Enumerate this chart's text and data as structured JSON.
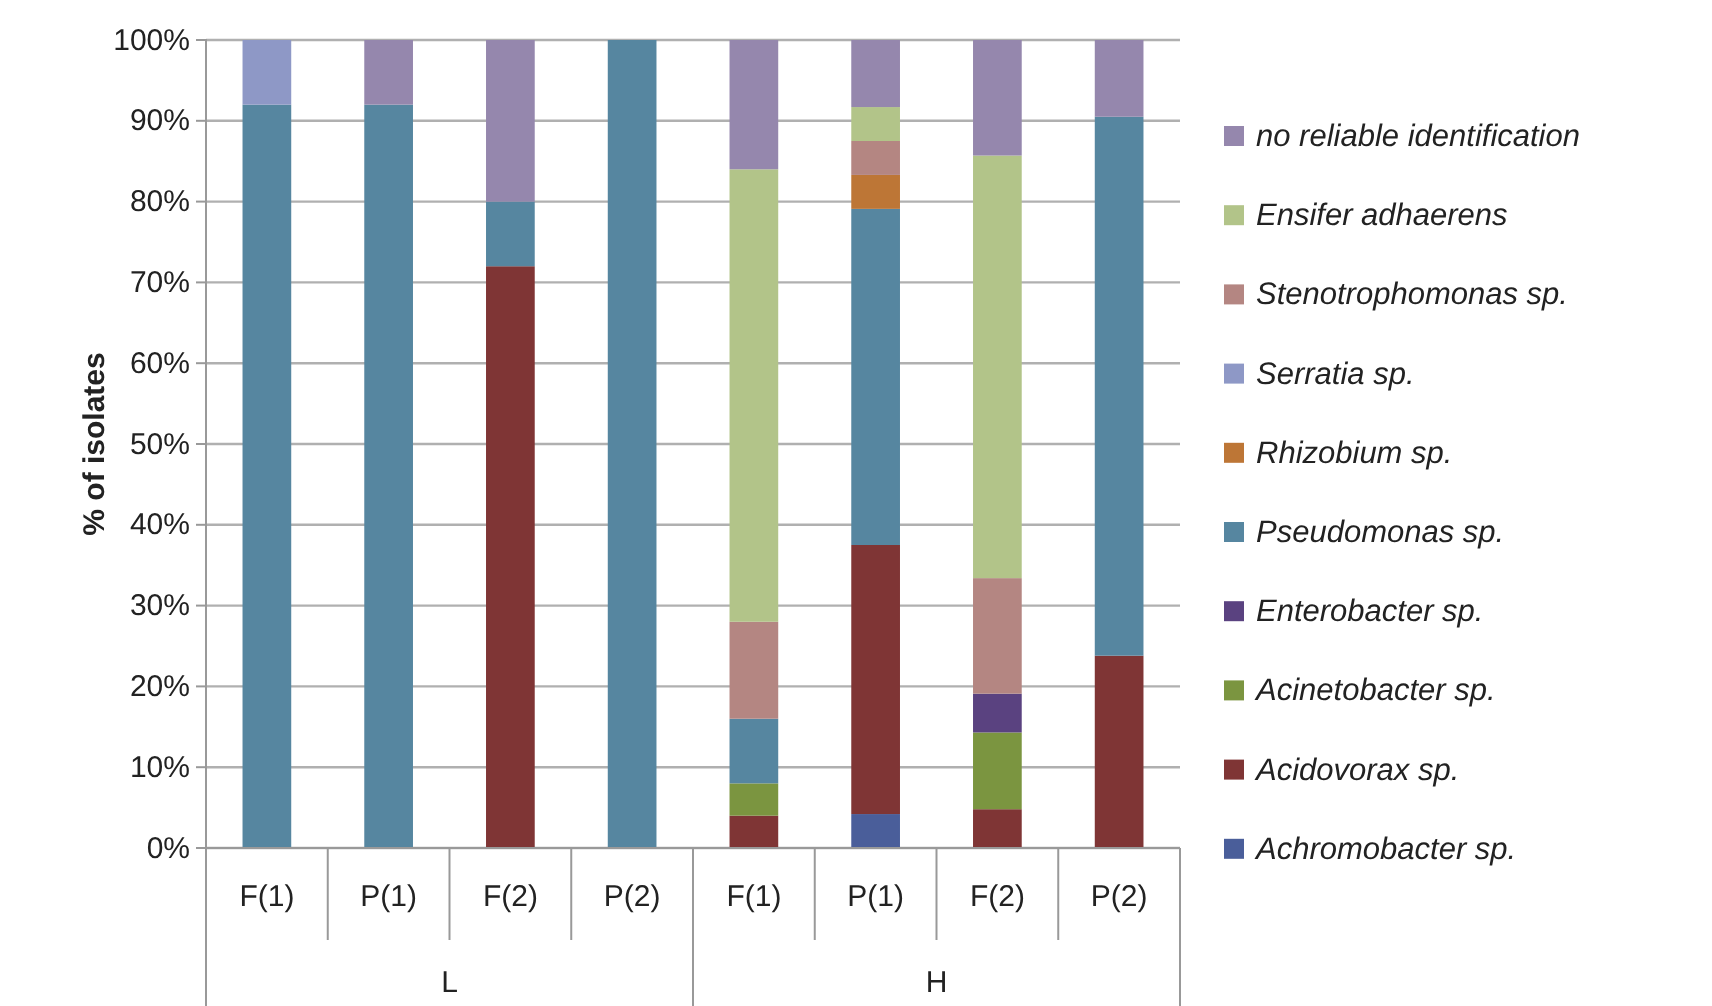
{
  "chart_data": {
    "type": "bar",
    "stacked": true,
    "ylabel": "% of isolates",
    "categories": [
      "F(1)",
      "P(1)",
      "F(2)",
      "P(2)",
      "F(1)",
      "P(1)",
      "F(2)",
      "P(2)"
    ],
    "annotations": [
      "L",
      "H"
    ],
    "ylim": [
      0,
      100
    ],
    "yticks": [
      {
        "value": 0,
        "label": "0%"
      },
      {
        "value": 10,
        "label": "10%"
      },
      {
        "value": 20,
        "label": "20%"
      },
      {
        "value": 30,
        "label": "30%"
      },
      {
        "value": 40,
        "label": "40%"
      },
      {
        "value": 50,
        "label": "50%"
      },
      {
        "value": 60,
        "label": "60%"
      },
      {
        "value": 70,
        "label": "70%"
      },
      {
        "value": 80,
        "label": "80%"
      },
      {
        "value": 90,
        "label": "90%"
      },
      {
        "value": 100,
        "label": "100%"
      }
    ],
    "grid": "y",
    "legend": "right",
    "series": [
      {
        "name": "Achromobacter sp.",
        "color": "#4a5e9a",
        "values": [
          0,
          0,
          0,
          0,
          0,
          4.2,
          0,
          0
        ]
      },
      {
        "name": "Acidovorax sp.",
        "color": "#7f3535",
        "values": [
          0,
          0,
          72,
          0,
          4,
          33.3,
          4.8,
          23.8
        ]
      },
      {
        "name": "Acinetobacter sp.",
        "color": "#7b9540",
        "values": [
          0,
          0,
          0,
          0,
          4,
          0,
          9.5,
          0
        ]
      },
      {
        "name": "Enterobacter sp.",
        "color": "#5a4280",
        "values": [
          0,
          0,
          0,
          0,
          0,
          0,
          4.8,
          0
        ]
      },
      {
        "name": "Pseudomonas sp.",
        "color": "#5686a0",
        "values": [
          92,
          92,
          8,
          100,
          8,
          41.6,
          0,
          66.7
        ]
      },
      {
        "name": "Rhizobium sp.",
        "color": "#bd7636",
        "values": [
          0,
          0,
          0,
          0,
          0,
          4.2,
          0,
          0
        ]
      },
      {
        "name": "Serratia sp.",
        "color": "#8e98c6",
        "values": [
          8,
          0,
          0,
          0,
          0,
          0,
          0,
          0
        ]
      },
      {
        "name": "Stenotrophomonas sp.",
        "color": "#b48682",
        "values": [
          0,
          0,
          0,
          0,
          12,
          4.2,
          14.3,
          0
        ]
      },
      {
        "name": "Ensifer adhaerens",
        "color": "#b2c489",
        "values": [
          0,
          0,
          0,
          0,
          56,
          4.2,
          52.3,
          0
        ]
      },
      {
        "name": "no reliable identification",
        "color": "#9587ad",
        "values": [
          0,
          8,
          20,
          0,
          16,
          8.3,
          14.3,
          9.5
        ]
      }
    ]
  }
}
